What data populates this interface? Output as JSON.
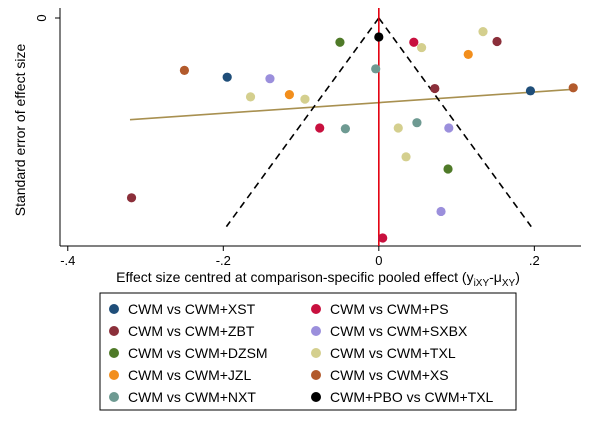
{
  "chart_data": {
    "type": "scatter",
    "title": "",
    "xlabel": "Effect size centred at comparison-specific pooled effect (y",
    "xlabel_sub1": "iXY",
    "xlabel_mid": "-μ",
    "xlabel_sub2": "XY",
    "xlabel_end": ")",
    "ylabel": "Standard error of effect size",
    "xlim": [
      -0.41,
      0.26
    ],
    "ylim_reversed": [
      0,
      0.29
    ],
    "x_ticks": [
      {
        "value": -0.4,
        "label": "-.4"
      },
      {
        "value": -0.2,
        "label": "-.2"
      },
      {
        "value": 0,
        "label": "0"
      },
      {
        "value": 0.2,
        "label": ".2"
      }
    ],
    "y_ticks": [
      {
        "value": 0,
        "label": "0"
      }
    ],
    "reference_line": {
      "x": 0,
      "color": "#e3000f"
    },
    "funnel_lines": {
      "apex": [
        0,
        0
      ],
      "base_se": 0.275,
      "half_width": 0.196,
      "color": "#000000",
      "dash": "dashed"
    },
    "regression_line": {
      "x": [
        -0.32,
        0.25
      ],
      "y": [
        0.134,
        0.094
      ],
      "color": "#a89050"
    },
    "grid": false,
    "legend_position": "bottom",
    "series": [
      {
        "name": "CWM vs CWM+XST",
        "color": "#1f4e79",
        "points": [
          [
            -0.195,
            0.078
          ],
          [
            0.195,
            0.096
          ]
        ]
      },
      {
        "name": "CWM vs CWM+PS",
        "color": "#c8103e",
        "points": [
          [
            0.045,
            0.032
          ],
          [
            -0.076,
            0.145
          ],
          [
            0.005,
            0.29
          ]
        ]
      },
      {
        "name": "CWM vs CWM+ZBT",
        "color": "#8b2f3a",
        "points": [
          [
            0.152,
            0.031
          ],
          [
            0.072,
            0.093
          ],
          [
            -0.318,
            0.237
          ]
        ]
      },
      {
        "name": "CWM vs CWM+SXBX",
        "color": "#9b8fdc",
        "points": [
          [
            -0.14,
            0.08
          ],
          [
            0.09,
            0.145
          ],
          [
            0.08,
            0.255
          ]
        ]
      },
      {
        "name": "CWM vs CWM+DZSM",
        "color": "#4f7a28",
        "points": [
          [
            -0.05,
            0.032
          ],
          [
            0.089,
            0.199
          ]
        ]
      },
      {
        "name": "CWM vs CWM+TXL",
        "color": "#d4cf8e",
        "points": [
          [
            0.055,
            0.039
          ],
          [
            0.134,
            0.018
          ],
          [
            -0.165,
            0.104
          ],
          [
            -0.095,
            0.107
          ],
          [
            0.025,
            0.145
          ],
          [
            0.035,
            0.183
          ]
        ]
      },
      {
        "name": "CWM vs CWM+JZL",
        "color": "#f28e1c",
        "points": [
          [
            0.115,
            0.048
          ],
          [
            -0.115,
            0.101
          ]
        ]
      },
      {
        "name": "CWM vs CWM+XS",
        "color": "#b25a2c",
        "points": [
          [
            -0.25,
            0.069
          ],
          [
            0.25,
            0.092
          ]
        ]
      },
      {
        "name": "CWM vs CWM+NXT",
        "color": "#6e9a92",
        "points": [
          [
            -0.004,
            0.067
          ],
          [
            -0.043,
            0.146
          ],
          [
            0.049,
            0.138
          ]
        ]
      },
      {
        "name": "CWM+PBO vs CWM+TXL",
        "color": "#000000",
        "points": [
          [
            0.0,
            0.025
          ]
        ]
      }
    ]
  }
}
